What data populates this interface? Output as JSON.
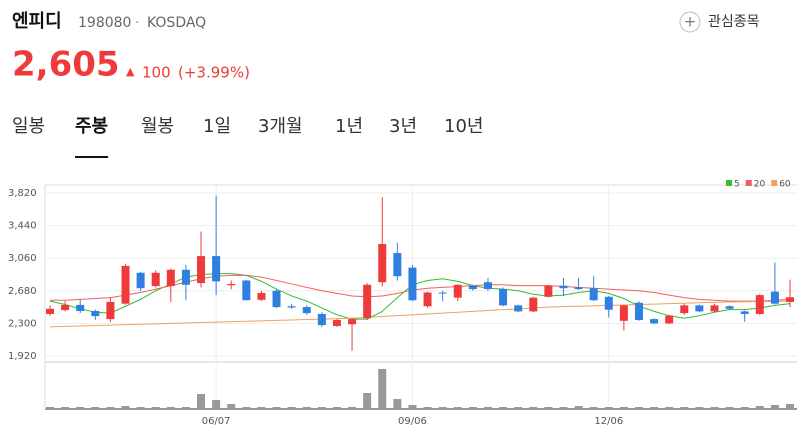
{
  "header": {
    "name": "엔피디",
    "code": "198080",
    "market": "KOSDAQ",
    "watch_button": "관심종목",
    "price": "2,605",
    "change": "100",
    "change_pct": "(+3.99%)"
  },
  "tabs": {
    "items": [
      "일봉",
      "주봉",
      "월봉",
      "1일",
      "3개월",
      "1년",
      "3년",
      "10년"
    ],
    "selected": 1
  },
  "chart_data": {
    "type": "candlestick",
    "categories": [
      null,
      null,
      null,
      null,
      null,
      null,
      null,
      null,
      null,
      null,
      null,
      "06/07",
      null,
      null,
      null,
      null,
      null,
      null,
      null,
      null,
      null,
      null,
      null,
      null,
      "09/06",
      null,
      null,
      null,
      null,
      null,
      null,
      null,
      null,
      null,
      null,
      null,
      null,
      "12/06",
      null,
      null,
      null,
      null,
      null,
      null,
      null,
      null,
      null,
      null,
      null,
      null
    ],
    "open": [
      2410,
      2455,
      2515,
      2445,
      2350,
      2530,
      2890,
      2735,
      2735,
      2925,
      2770,
      3085,
      2745,
      2800,
      2575,
      2680,
      2500,
      2490,
      2410,
      2270,
      2290,
      2360,
      2780,
      3120,
      2950,
      2500,
      2660,
      2600,
      2740,
      2780,
      2700,
      2510,
      2440,
      2610,
      2740,
      2720,
      2710,
      2610,
      2330,
      2540,
      2350,
      2300,
      2420,
      2510,
      2440,
      2500,
      2440,
      2410,
      2670,
      2550
    ],
    "high": [
      2510,
      2560,
      2585,
      2460,
      2600,
      2990,
      2900,
      2920,
      2940,
      2980,
      3370,
      3790,
      2800,
      2810,
      2680,
      2700,
      2530,
      2510,
      2430,
      2350,
      2360,
      2770,
      3770,
      3240,
      2980,
      2670,
      2680,
      2760,
      2750,
      2830,
      2720,
      2520,
      2610,
      2750,
      2830,
      2830,
      2850,
      2620,
      2510,
      2560,
      2360,
      2400,
      2530,
      2520,
      2530,
      2510,
      2450,
      2640,
      3010,
      2810
    ],
    "low": [
      2390,
      2440,
      2420,
      2340,
      2315,
      2520,
      2680,
      2720,
      2550,
      2570,
      2720,
      2630,
      2700,
      2570,
      2560,
      2480,
      2470,
      2400,
      2260,
      2260,
      1980,
      2340,
      2730,
      2800,
      2560,
      2480,
      2560,
      2560,
      2680,
      2680,
      2500,
      2430,
      2430,
      2600,
      2620,
      2690,
      2560,
      2370,
      2220,
      2330,
      2290,
      2290,
      2400,
      2430,
      2430,
      2460,
      2320,
      2400,
      2520,
      2490
    ],
    "close": [
      2470,
      2515,
      2445,
      2385,
      2550,
      2970,
      2710,
      2890,
      2925,
      2750,
      3085,
      2790,
      2760,
      2570,
      2655,
      2490,
      2485,
      2420,
      2280,
      2340,
      2350,
      2750,
      3225,
      2850,
      2570,
      2660,
      2650,
      2750,
      2700,
      2700,
      2510,
      2440,
      2600,
      2740,
      2710,
      2700,
      2570,
      2460,
      2510,
      2340,
      2300,
      2390,
      2510,
      2440,
      2510,
      2470,
      2410,
      2630,
      2530,
      2605
    ],
    "up_color": "#ef3a3a",
    "down_color": "#2f7fe0",
    "series": [
      {
        "name": "5",
        "color": "#33bb33",
        "values": [
          2560,
          2520,
          2470,
          2430,
          2420,
          2500,
          2580,
          2680,
          2760,
          2840,
          2870,
          2880,
          2880,
          2860,
          2790,
          2700,
          2620,
          2560,
          2480,
          2400,
          2350,
          2350,
          2440,
          2600,
          2750,
          2800,
          2820,
          2790,
          2740,
          2710,
          2700,
          2680,
          2640,
          2620,
          2630,
          2660,
          2680,
          2650,
          2590,
          2500,
          2440,
          2390,
          2360,
          2390,
          2430,
          2460,
          2460,
          2480,
          2510,
          2530
        ]
      },
      {
        "name": "20",
        "color": "#f06060",
        "values": [
          2570,
          2570,
          2580,
          2590,
          2600,
          2630,
          2660,
          2700,
          2740,
          2780,
          2820,
          2850,
          2860,
          2860,
          2840,
          2800,
          2760,
          2720,
          2680,
          2650,
          2620,
          2610,
          2620,
          2650,
          2690,
          2710,
          2720,
          2730,
          2740,
          2750,
          2750,
          2740,
          2740,
          2740,
          2730,
          2720,
          2710,
          2700,
          2690,
          2680,
          2660,
          2630,
          2600,
          2580,
          2570,
          2560,
          2560,
          2560,
          2570,
          2580
        ]
      },
      {
        "name": "60",
        "color": "#f0a060",
        "values": [
          2260,
          2265,
          2270,
          2275,
          2280,
          2285,
          2290,
          2295,
          2300,
          2305,
          2310,
          2315,
          2320,
          2325,
          2330,
          2335,
          2340,
          2345,
          2350,
          2355,
          2360,
          2370,
          2380,
          2390,
          2400,
          2410,
          2420,
          2430,
          2440,
          2450,
          2460,
          2470,
          2480,
          2490,
          2495,
          2500,
          2505,
          2510,
          2515,
          2520,
          2525,
          2530,
          2535,
          2540,
          2545,
          2550,
          2552,
          2555,
          2558,
          2560
        ]
      }
    ],
    "ylim": [
      1920,
      3820
    ],
    "yticks": [
      {
        "value": 3820,
        "label": "3,820"
      },
      {
        "value": 3440,
        "label": "3,440"
      },
      {
        "value": 3060,
        "label": "3,060"
      },
      {
        "value": 2680,
        "label": "2,680"
      },
      {
        "value": 2300,
        "label": "2,300"
      },
      {
        "value": 1920,
        "label": "1,920"
      }
    ],
    "grid": true,
    "legend": "top-right",
    "volume": [
      2,
      2,
      2,
      2,
      2,
      3,
      2,
      2,
      2,
      2,
      15,
      9,
      5,
      2,
      2,
      2,
      2,
      2,
      2,
      2,
      2,
      16,
      40,
      10,
      4,
      2,
      2,
      2,
      2,
      2,
      2,
      2,
      2,
      2,
      2,
      3,
      2,
      2,
      2,
      2,
      2,
      2,
      2,
      2,
      2,
      2,
      2,
      3,
      4,
      5
    ],
    "volume_ylim": [
      0,
      40
    ],
    "volume_color": "#999999"
  }
}
